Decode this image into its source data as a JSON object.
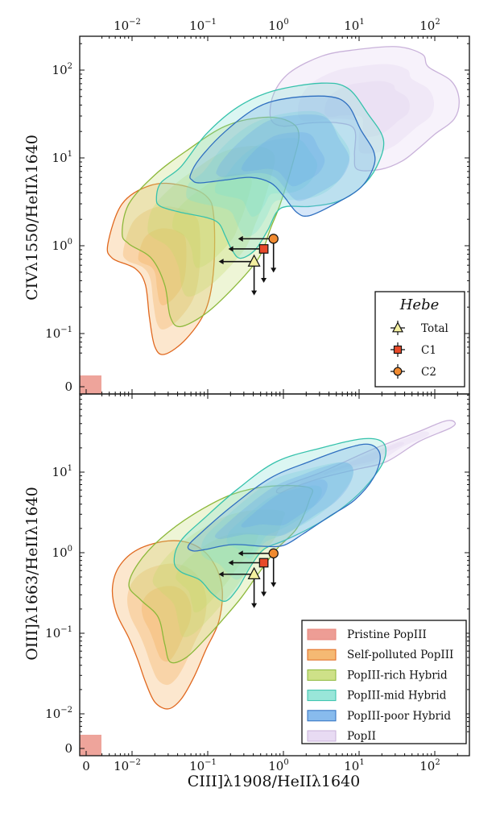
{
  "colors": {
    "pristine_popIII": "#e8857a",
    "self_polluted_popIII": "#f3a850",
    "self_polluted_popIII_line": "#e0681f",
    "popIII_rich_hybrid": "#c2da6a",
    "popIII_rich_hybrid_line": "#8cb83a",
    "popIII_mid_hybrid": "#7fe0cf",
    "popIII_mid_hybrid_line": "#36c2ac",
    "popIII_poor_hybrid": "#6aaae8",
    "popIII_poor_hybrid_line": "#2f6fc0",
    "popII": "#e2d2f0",
    "popII_line": "#c9b2da",
    "total_marker": "#f4f0a0",
    "c1_marker": "#e84a2a",
    "c2_marker": "#f08a30"
  },
  "chart_data": [
    {
      "panel": "top",
      "type": "contour",
      "xscale": "log (with zero bin)",
      "yscale": "log (with zero bin)",
      "xlabel": "",
      "ylabel": "CIVλ1550/HeIIλ1640",
      "xlim": [
        0.004,
        280
      ],
      "ylim": [
        0.05,
        245
      ],
      "x_ticks": [
        {
          "base": "10",
          "exp": "−2",
          "value": 0.01
        },
        {
          "base": "10",
          "exp": "−1",
          "value": 0.1
        },
        {
          "base": "10",
          "exp": "0",
          "value": 1
        },
        {
          "base": "10",
          "exp": "1",
          "value": 10
        },
        {
          "base": "10",
          "exp": "2",
          "value": 100
        }
      ],
      "y_ticks": [
        {
          "base": "10",
          "exp": "2",
          "value": 100
        },
        {
          "base": "10",
          "exp": "1",
          "value": 10
        },
        {
          "base": "10",
          "exp": "0",
          "value": 1
        },
        {
          "base": "10",
          "exp": "−1",
          "value": 0.1
        }
      ],
      "zero_label": "0",
      "pristine_popIII": {
        "x": 0,
        "y": 0
      },
      "contours": [
        {
          "population": "PopII",
          "key": "popII",
          "points": [
            [
              0.68,
              28
            ],
            [
              0.74,
              53
            ],
            [
              1.2,
              93
            ],
            [
              3.2,
              144
            ],
            [
              8.7,
              170
            ],
            [
              31,
              185
            ],
            [
              68,
              152
            ],
            [
              82,
              109
            ],
            [
              163,
              76
            ],
            [
              209,
              47
            ],
            [
              182,
              28
            ],
            [
              100,
              18.6
            ],
            [
              62,
              13
            ],
            [
              37,
              9.2
            ],
            [
              19,
              7.4
            ],
            [
              9.5,
              7.4
            ],
            [
              8.7,
              10.7
            ],
            [
              8.7,
              21
            ],
            [
              5.3,
              25
            ],
            [
              2.2,
              25
            ],
            [
              1.0,
              23
            ]
          ]
        },
        {
          "population": "Self-polluted PopIII",
          "key": "self_polluted_popIII",
          "points": [
            [
              0.0048,
              1.05
            ],
            [
              0.0074,
              3.0
            ],
            [
              0.018,
              4.9
            ],
            [
              0.044,
              4.9
            ],
            [
              0.095,
              3.7
            ],
            [
              0.12,
              2.2
            ],
            [
              0.12,
              0.55
            ],
            [
              0.095,
              0.19
            ],
            [
              0.052,
              0.087
            ],
            [
              0.027,
              0.058
            ],
            [
              0.02,
              0.071
            ],
            [
              0.017,
              0.15
            ],
            [
              0.015,
              0.36
            ],
            [
              0.011,
              0.55
            ],
            [
              0.0055,
              0.72
            ]
          ]
        },
        {
          "population": "PopIII-rich Hybrid",
          "key": "popIII_rich_hybrid",
          "points": [
            [
              0.0074,
              1.4
            ],
            [
              0.0091,
              3.0
            ],
            [
              0.02,
              6.4
            ],
            [
              0.052,
              12
            ],
            [
              0.17,
              23
            ],
            [
              0.55,
              29
            ],
            [
              1.2,
              26
            ],
            [
              1.6,
              18.6
            ],
            [
              1.35,
              9.2
            ],
            [
              0.91,
              3.0
            ],
            [
              0.68,
              1.6
            ],
            [
              0.55,
              0.95
            ],
            [
              0.42,
              0.63
            ],
            [
              0.21,
              0.32
            ],
            [
              0.095,
              0.17
            ],
            [
              0.044,
              0.12
            ],
            [
              0.032,
              0.155
            ],
            [
              0.027,
              0.36
            ],
            [
              0.018,
              0.72
            ],
            [
              0.0091,
              1.05
            ]
          ]
        },
        {
          "population": "PopIII-mid Hybrid",
          "key": "popIII_mid_hybrid",
          "points": [
            [
              0.021,
              3.4
            ],
            [
              0.024,
              5.2
            ],
            [
              0.044,
              7.9
            ],
            [
              0.095,
              18.6
            ],
            [
              0.25,
              38
            ],
            [
              0.74,
              58
            ],
            [
              3.2,
              71
            ],
            [
              7.1,
              62
            ],
            [
              13,
              32
            ],
            [
              21,
              16
            ],
            [
              17,
              7.9
            ],
            [
              10.5,
              4.6
            ],
            [
              5.3,
              3.2
            ],
            [
              2.2,
              2.8
            ],
            [
              1.1,
              2.8
            ],
            [
              0.81,
              2.4
            ],
            [
              0.62,
              1.5
            ],
            [
              0.42,
              0.89
            ],
            [
              0.27,
              0.72
            ],
            [
              0.21,
              0.89
            ],
            [
              0.17,
              1.3
            ],
            [
              0.14,
              1.8
            ],
            [
              0.095,
              2.1
            ],
            [
              0.044,
              2.4
            ],
            [
              0.024,
              2.8
            ]
          ]
        },
        {
          "population": "PopIII-poor Hybrid",
          "key": "popIII_poor_hybrid",
          "points": [
            [
              0.059,
              6.4
            ],
            [
              0.078,
              9.8
            ],
            [
              0.17,
              20
            ],
            [
              0.46,
              38
            ],
            [
              1.2,
              48
            ],
            [
              4.0,
              50
            ],
            [
              7.1,
              40
            ],
            [
              10.5,
              21
            ],
            [
              15.5,
              12
            ],
            [
              15.5,
              7.9
            ],
            [
              10.5,
              4.6
            ],
            [
              4.8,
              3.0
            ],
            [
              2.2,
              2.2
            ],
            [
              1.5,
              2.4
            ],
            [
              1.0,
              3.7
            ],
            [
              0.68,
              5.2
            ],
            [
              0.37,
              6.0
            ],
            [
              0.17,
              5.6
            ],
            [
              0.078,
              5.2
            ],
            [
              0.062,
              5.6
            ]
          ]
        }
      ],
      "hebe_points": [
        {
          "name": "Total",
          "marker": "triangle",
          "x": 0.41,
          "y": 0.66,
          "x_upper_limit": true,
          "y_upper_limit": true
        },
        {
          "name": "C1",
          "marker": "square",
          "x": 0.55,
          "y": 0.92,
          "x_upper_limit": true,
          "y_upper_limit": true
        },
        {
          "name": "C2",
          "marker": "circle",
          "x": 0.74,
          "y": 1.2,
          "x_upper_limit": true,
          "y_upper_limit": true
        }
      ],
      "legend": {
        "placement": "lower-right",
        "title": "Hebe",
        "entries": [
          "Total",
          "C1",
          "C2"
        ]
      }
    },
    {
      "panel": "bottom",
      "type": "contour",
      "xscale": "log (with zero bin)",
      "yscale": "log (with zero bin)",
      "xlabel": "CIII]λ1908/HeIIλ1640",
      "ylabel": "OIII]λ1663/HeIIλ1640",
      "xlim": [
        0.004,
        280
      ],
      "ylim": [
        0.002,
        93
      ],
      "x_ticks": [
        {
          "base": "10",
          "exp": "−2",
          "value": 0.01
        },
        {
          "base": "10",
          "exp": "−1",
          "value": 0.1
        },
        {
          "base": "10",
          "exp": "0",
          "value": 1
        },
        {
          "base": "10",
          "exp": "1",
          "value": 10
        },
        {
          "base": "10",
          "exp": "2",
          "value": 100
        }
      ],
      "y_ticks": [
        {
          "base": "10",
          "exp": "1",
          "value": 10
        },
        {
          "base": "10",
          "exp": "0",
          "value": 1
        },
        {
          "base": "10",
          "exp": "−1",
          "value": 0.1
        },
        {
          "base": "10",
          "exp": "−2",
          "value": 0.01
        }
      ],
      "zero_label": "0",
      "pristine_popIII": {
        "x": 0,
        "y": 0
      },
      "contours": [
        {
          "population": "PopII",
          "key": "popII",
          "points": [
            [
              0.81,
              5.8
            ],
            [
              1.0,
              6.7
            ],
            [
              3.2,
              10
            ],
            [
              14,
              18.6
            ],
            [
              62,
              32
            ],
            [
              135,
              43
            ],
            [
              182,
              42
            ],
            [
              163,
              35.5
            ],
            [
              62,
              24
            ],
            [
              23,
              13.5
            ],
            [
              8.7,
              10.7
            ],
            [
              3.2,
              8.5
            ],
            [
              1.2,
              6.2
            ],
            [
              0.91,
              5.5
            ]
          ]
        },
        {
          "population": "Self-polluted PopIII",
          "key": "self_polluted_popIII",
          "points": [
            [
              0.0055,
              0.36
            ],
            [
              0.0068,
              0.68
            ],
            [
              0.012,
              1.1
            ],
            [
              0.03,
              1.4
            ],
            [
              0.065,
              1.26
            ],
            [
              0.115,
              0.79
            ],
            [
              0.155,
              0.36
            ],
            [
              0.14,
              0.14
            ],
            [
              0.095,
              0.063
            ],
            [
              0.065,
              0.028
            ],
            [
              0.044,
              0.015
            ],
            [
              0.03,
              0.0115
            ],
            [
              0.02,
              0.014
            ],
            [
              0.015,
              0.025
            ],
            [
              0.012,
              0.046
            ],
            [
              0.0091,
              0.087
            ],
            [
              0.0062,
              0.18
            ]
          ]
        },
        {
          "population": "PopIII-rich Hybrid",
          "key": "popIII_rich_hybrid",
          "points": [
            [
              0.0091,
              0.39
            ],
            [
              0.012,
              0.73
            ],
            [
              0.024,
              1.5
            ],
            [
              0.065,
              3.0
            ],
            [
              0.21,
              5.3
            ],
            [
              0.68,
              6.7
            ],
            [
              2.2,
              6.4
            ],
            [
              2.2,
              4.5
            ],
            [
              1.5,
              2.0
            ],
            [
              0.81,
              1.1
            ],
            [
              0.46,
              0.54
            ],
            [
              0.28,
              0.28
            ],
            [
              0.17,
              0.16
            ],
            [
              0.095,
              0.087
            ],
            [
              0.052,
              0.05
            ],
            [
              0.032,
              0.044
            ],
            [
              0.027,
              0.074
            ],
            [
              0.022,
              0.16
            ],
            [
              0.013,
              0.26
            ]
          ]
        },
        {
          "population": "PopIII-mid Hybrid",
          "key": "popIII_mid_hybrid",
          "points": [
            [
              0.036,
              0.79
            ],
            [
              0.044,
              1.4
            ],
            [
              0.095,
              2.8
            ],
            [
              0.25,
              6.2
            ],
            [
              0.81,
              13.5
            ],
            [
              3.2,
              20
            ],
            [
              11.5,
              26
            ],
            [
              21,
              23
            ],
            [
              21,
              13.5
            ],
            [
              11.5,
              6.2
            ],
            [
              5.3,
              3.3
            ],
            [
              2.2,
              2.0
            ],
            [
              1.0,
              1.4
            ],
            [
              0.55,
              1.1
            ],
            [
              0.37,
              0.68
            ],
            [
              0.25,
              0.36
            ],
            [
              0.17,
              0.25
            ],
            [
              0.115,
              0.31
            ],
            [
              0.078,
              0.46
            ],
            [
              0.044,
              0.58
            ]
          ]
        },
        {
          "population": "PopIII-poor Hybrid",
          "key": "popIII_poor_hybrid",
          "points": [
            [
              0.055,
              1.2
            ],
            [
              0.078,
              1.7
            ],
            [
              0.21,
              3.8
            ],
            [
              0.68,
              8.5
            ],
            [
              2.2,
              13.5
            ],
            [
              7.1,
              20
            ],
            [
              14,
              22
            ],
            [
              19,
              16
            ],
            [
              15.5,
              8.5
            ],
            [
              8.7,
              4.5
            ],
            [
              4.0,
              2.8
            ],
            [
              1.8,
              1.7
            ],
            [
              1.0,
              1.23
            ],
            [
              0.55,
              1.2
            ],
            [
              0.21,
              1.26
            ],
            [
              0.095,
              1.1
            ],
            [
              0.065,
              1.05
            ]
          ]
        }
      ],
      "hebe_points": [
        {
          "name": "Total",
          "marker": "triangle",
          "x": 0.41,
          "y": 0.54,
          "x_upper_limit": true,
          "y_upper_limit": true
        },
        {
          "name": "C1",
          "marker": "square",
          "x": 0.55,
          "y": 0.75,
          "x_upper_limit": true,
          "y_upper_limit": true
        },
        {
          "name": "C2",
          "marker": "circle",
          "x": 0.74,
          "y": 0.98,
          "x_upper_limit": true,
          "y_upper_limit": true
        }
      ],
      "legend": {
        "placement": "lower-right",
        "entries": [
          {
            "label": "Pristine PopIII",
            "key": "pristine_popIII"
          },
          {
            "label": "Self-polluted PopIII",
            "key": "self_polluted_popIII"
          },
          {
            "label": "PopIII-rich Hybrid",
            "key": "popIII_rich_hybrid"
          },
          {
            "label": "PopIII-mid Hybrid",
            "key": "popIII_mid_hybrid"
          },
          {
            "label": "PopIII-poor Hybrid",
            "key": "popIII_poor_hybrid"
          },
          {
            "label": "PopII",
            "key": "popII"
          }
        ]
      }
    }
  ]
}
